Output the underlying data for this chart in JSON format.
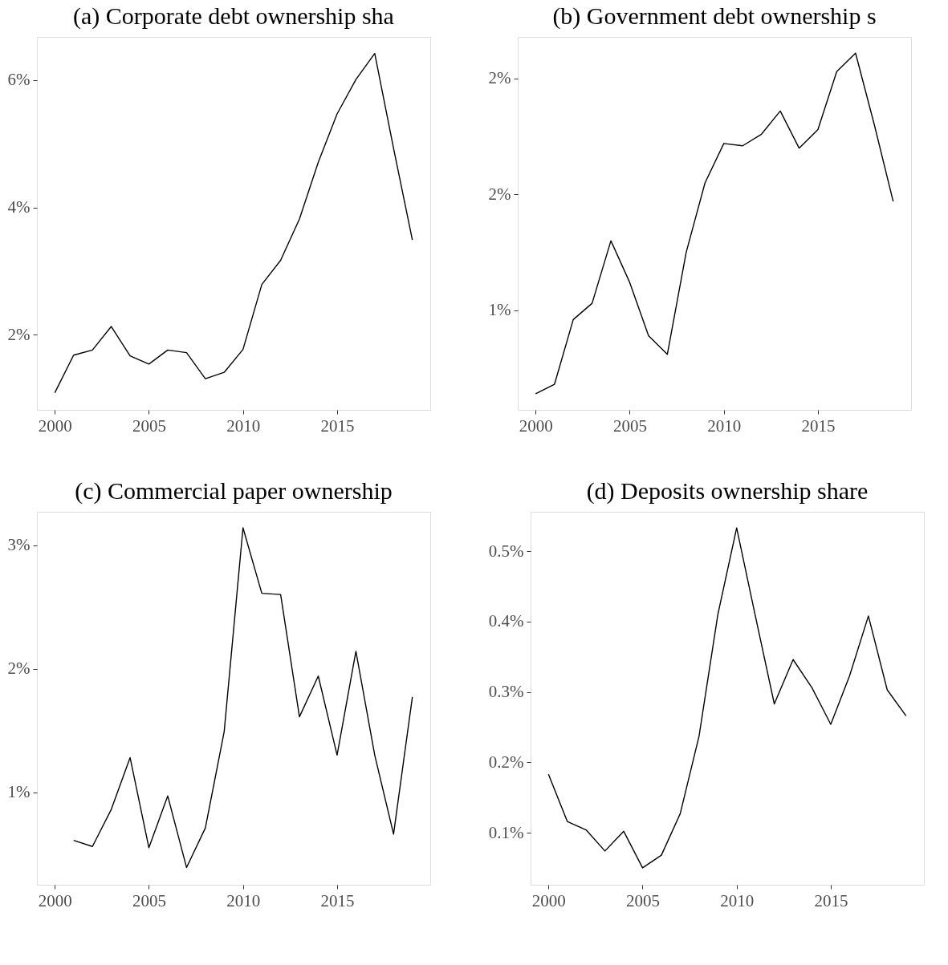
{
  "chart_data": [
    {
      "type": "line",
      "title": "(a) Corporate debt ownership sha",
      "x": [
        2000,
        2001,
        2002,
        2003,
        2004,
        2005,
        2006,
        2007,
        2008,
        2009,
        2010,
        2011,
        2012,
        2013,
        2014,
        2015,
        2016,
        2017,
        2018,
        2019
      ],
      "series": [
        {
          "color": "#000000",
          "values": [
            1.09,
            1.68,
            1.76,
            2.13,
            1.67,
            1.54,
            1.76,
            1.72,
            1.31,
            1.41,
            1.77,
            2.79,
            3.17,
            3.82,
            4.71,
            5.47,
            6.01,
            6.42,
            4.93,
            3.49
          ]
        }
      ],
      "xlim": [
        1999.05,
        2019.95
      ],
      "xticks": [
        2000,
        2005,
        2010,
        2015
      ],
      "ylim": [
        0.82,
        6.68
      ],
      "yticks": [
        {
          "value": 2,
          "label": "2%"
        },
        {
          "value": 4,
          "label": "4%"
        },
        {
          "value": 6,
          "label": "6%"
        }
      ],
      "grid": false
    },
    {
      "type": "line",
      "title": "(b) Government debt ownership s",
      "x": [
        2000,
        2001,
        2002,
        2003,
        2004,
        2005,
        2006,
        2007,
        2008,
        2009,
        2010,
        2011,
        2012,
        2013,
        2014,
        2015,
        2016,
        2017,
        2018,
        2019
      ],
      "series": [
        {
          "color": "#000000",
          "values": [
            0.64,
            0.68,
            0.96,
            1.03,
            1.3,
            1.12,
            0.89,
            0.81,
            1.25,
            1.55,
            1.72,
            1.71,
            1.76,
            1.86,
            1.7,
            1.78,
            2.03,
            2.11,
            1.8,
            1.47
          ]
        }
      ],
      "xlim": [
        1999.05,
        2019.95
      ],
      "xticks": [
        2000,
        2005,
        2010,
        2015
      ],
      "ylim": [
        0.57,
        2.18
      ],
      "yticks": [
        {
          "value": 1,
          "label": "1%"
        },
        {
          "value": 1.5,
          "label": "2%"
        },
        {
          "value": 2,
          "label": "2%"
        }
      ],
      "grid": false
    },
    {
      "type": "line",
      "title": "(c) Commercial paper ownership",
      "x": [
        2001,
        2002,
        2003,
        2004,
        2005,
        2006,
        2007,
        2008,
        2009,
        2010,
        2011,
        2012,
        2013,
        2014,
        2015,
        2016,
        2017,
        2018,
        2019
      ],
      "series": [
        {
          "color": "#000000",
          "values": [
            0.61,
            0.56,
            0.86,
            1.28,
            0.55,
            0.97,
            0.39,
            0.71,
            1.49,
            3.14,
            2.61,
            2.6,
            1.61,
            1.94,
            1.3,
            2.14,
            1.3,
            0.66,
            1.77
          ]
        }
      ],
      "xlim": [
        1999.05,
        2019.95
      ],
      "xticks": [
        2000,
        2005,
        2010,
        2015
      ],
      "ylim": [
        0.25,
        3.27
      ],
      "yticks": [
        {
          "value": 1,
          "label": "1%"
        },
        {
          "value": 2,
          "label": "2%"
        },
        {
          "value": 3,
          "label": "3%"
        }
      ],
      "grid": false
    },
    {
      "type": "line",
      "title": "(d) Deposits ownership share",
      "x": [
        2000,
        2001,
        2002,
        2003,
        2004,
        2005,
        2006,
        2007,
        2008,
        2009,
        2010,
        2011,
        2012,
        2013,
        2014,
        2015,
        2016,
        2017,
        2018,
        2019
      ],
      "series": [
        {
          "color": "#000000",
          "values": [
            0.183,
            0.116,
            0.104,
            0.074,
            0.102,
            0.05,
            0.068,
            0.127,
            0.237,
            0.41,
            0.533,
            0.407,
            0.283,
            0.346,
            0.306,
            0.254,
            0.323,
            0.408,
            0.303,
            0.266
          ]
        }
      ],
      "xlim": [
        1999.05,
        2019.95
      ],
      "xticks": [
        2000,
        2005,
        2010,
        2015
      ],
      "ylim": [
        0.026,
        0.556
      ],
      "yticks": [
        {
          "value": 0.1,
          "label": "0.1%"
        },
        {
          "value": 0.2,
          "label": "0.2%"
        },
        {
          "value": 0.3,
          "label": "0.3%"
        },
        {
          "value": 0.4,
          "label": "0.4%"
        },
        {
          "value": 0.5,
          "label": "0.5%"
        }
      ],
      "grid": false
    }
  ]
}
